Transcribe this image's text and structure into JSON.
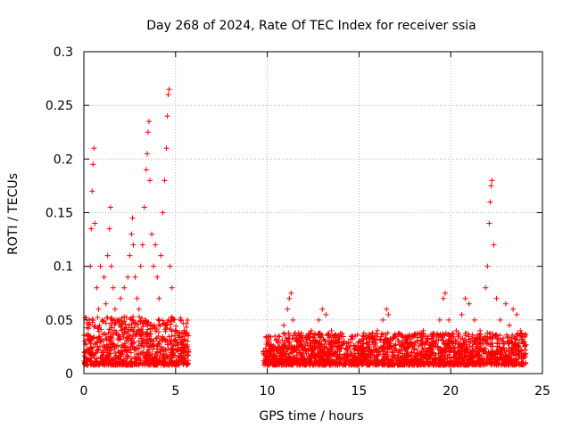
{
  "chart_data": {
    "type": "scatter",
    "title": "Day 268 of 2024, Rate Of TEC Index for receiver ssia",
    "xlabel": "GPS time / hours",
    "ylabel": "ROTI / TECUs",
    "xlim": [
      0,
      25
    ],
    "ylim": [
      0,
      0.3
    ],
    "xticks": [
      0,
      5,
      10,
      15,
      20,
      25
    ],
    "xtick_labels": [
      "0",
      "5",
      "10",
      "15",
      "20",
      "25"
    ],
    "yticks": [
      0,
      0.05,
      0.1,
      0.15,
      0.2,
      0.25,
      0.3
    ],
    "ytick_labels": [
      "0",
      "0.05",
      "0.1",
      "0.15",
      "0.2",
      "0.25",
      "0.3"
    ],
    "grid": true,
    "marker": "+",
    "series": [
      {
        "name": "ROTI",
        "color": "#ff0000",
        "points": [
          [
            0.1,
            0.02
          ],
          [
            0.2,
            0.035
          ],
          [
            0.3,
            0.05
          ],
          [
            0.35,
            0.1
          ],
          [
            0.4,
            0.135
          ],
          [
            0.45,
            0.17
          ],
          [
            0.5,
            0.195
          ],
          [
            0.55,
            0.21
          ],
          [
            0.6,
            0.14
          ],
          [
            0.7,
            0.08
          ],
          [
            0.8,
            0.06
          ],
          [
            0.9,
            0.1
          ],
          [
            1.0,
            0.05
          ],
          [
            1.1,
            0.09
          ],
          [
            1.2,
            0.065
          ],
          [
            1.3,
            0.11
          ],
          [
            1.4,
            0.135
          ],
          [
            1.45,
            0.155
          ],
          [
            1.5,
            0.1
          ],
          [
            1.6,
            0.08
          ],
          [
            1.7,
            0.06
          ],
          [
            1.8,
            0.05
          ],
          [
            2.0,
            0.07
          ],
          [
            2.2,
            0.08
          ],
          [
            2.4,
            0.09
          ],
          [
            2.5,
            0.11
          ],
          [
            2.6,
            0.13
          ],
          [
            2.65,
            0.145
          ],
          [
            2.7,
            0.12
          ],
          [
            2.8,
            0.09
          ],
          [
            2.9,
            0.07
          ],
          [
            3.0,
            0.06
          ],
          [
            3.1,
            0.1
          ],
          [
            3.2,
            0.12
          ],
          [
            3.3,
            0.155
          ],
          [
            3.4,
            0.19
          ],
          [
            3.45,
            0.205
          ],
          [
            3.5,
            0.225
          ],
          [
            3.55,
            0.235
          ],
          [
            3.6,
            0.18
          ],
          [
            3.7,
            0.13
          ],
          [
            3.8,
            0.1
          ],
          [
            3.9,
            0.12
          ],
          [
            4.0,
            0.09
          ],
          [
            4.1,
            0.07
          ],
          [
            4.2,
            0.11
          ],
          [
            4.3,
            0.15
          ],
          [
            4.4,
            0.18
          ],
          [
            4.5,
            0.21
          ],
          [
            4.55,
            0.24
          ],
          [
            4.6,
            0.26
          ],
          [
            4.65,
            0.265
          ],
          [
            4.7,
            0.1
          ],
          [
            4.8,
            0.08
          ],
          [
            4.9,
            0.05
          ],
          [
            5.0,
            0.04
          ],
          [
            5.2,
            0.035
          ],
          [
            5.4,
            0.03
          ],
          [
            5.6,
            0.025
          ],
          [
            5.7,
            0.02
          ],
          [
            9.8,
            0.02
          ],
          [
            10.0,
            0.03
          ],
          [
            10.3,
            0.025
          ],
          [
            10.6,
            0.035
          ],
          [
            10.9,
            0.045
          ],
          [
            11.1,
            0.06
          ],
          [
            11.2,
            0.07
          ],
          [
            11.3,
            0.075
          ],
          [
            11.4,
            0.05
          ],
          [
            11.6,
            0.03
          ],
          [
            12.0,
            0.03
          ],
          [
            12.4,
            0.04
          ],
          [
            12.8,
            0.05
          ],
          [
            13.0,
            0.06
          ],
          [
            13.2,
            0.055
          ],
          [
            13.5,
            0.04
          ],
          [
            13.8,
            0.03
          ],
          [
            14.2,
            0.03
          ],
          [
            14.6,
            0.035
          ],
          [
            15.0,
            0.03
          ],
          [
            15.5,
            0.035
          ],
          [
            16.0,
            0.04
          ],
          [
            16.3,
            0.05
          ],
          [
            16.5,
            0.06
          ],
          [
            16.6,
            0.055
          ],
          [
            17.0,
            0.035
          ],
          [
            17.5,
            0.03
          ],
          [
            18.0,
            0.035
          ],
          [
            18.5,
            0.04
          ],
          [
            19.0,
            0.035
          ],
          [
            19.4,
            0.05
          ],
          [
            19.6,
            0.07
          ],
          [
            19.7,
            0.075
          ],
          [
            19.9,
            0.05
          ],
          [
            20.3,
            0.04
          ],
          [
            20.6,
            0.055
          ],
          [
            20.8,
            0.07
          ],
          [
            21.0,
            0.065
          ],
          [
            21.3,
            0.05
          ],
          [
            21.6,
            0.04
          ],
          [
            21.9,
            0.08
          ],
          [
            22.0,
            0.1
          ],
          [
            22.1,
            0.14
          ],
          [
            22.15,
            0.16
          ],
          [
            22.2,
            0.175
          ],
          [
            22.25,
            0.18
          ],
          [
            22.35,
            0.12
          ],
          [
            22.5,
            0.07
          ],
          [
            22.7,
            0.05
          ],
          [
            23.0,
            0.065
          ],
          [
            23.2,
            0.045
          ],
          [
            23.4,
            0.06
          ],
          [
            23.6,
            0.055
          ],
          [
            23.8,
            0.04
          ],
          [
            24.0,
            0.03
          ]
        ]
      }
    ]
  }
}
